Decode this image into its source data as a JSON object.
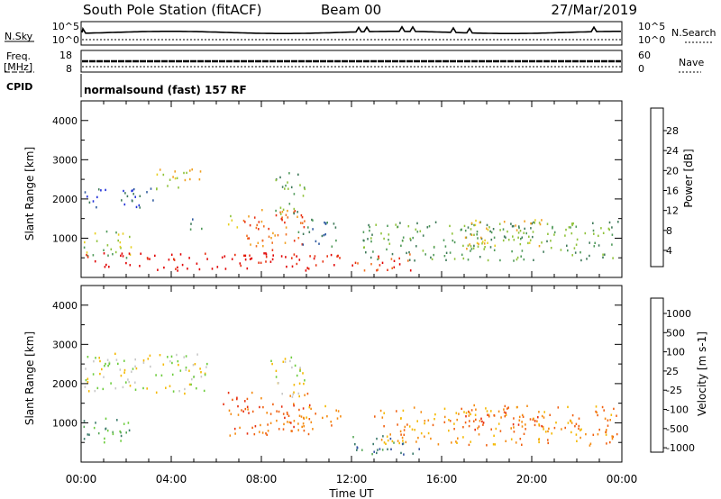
{
  "header": {
    "station": "South Pole Station (fitACF)",
    "beam": "Beam 00",
    "date": "27/Mar/2019"
  },
  "top_panels": {
    "nsky_label": "N.Sky",
    "nsky_ticks": [
      "10^5",
      "10^0"
    ],
    "nsearch_label": "N.Search",
    "nsearch_ticks": [
      "10^5",
      "10^0"
    ],
    "freq_label_line1": "Freq.",
    "freq_label_line2": "[MHz]",
    "freq_ticks": [
      "18",
      "8"
    ],
    "nave_label": "Nave",
    "nave_ticks": [
      "60",
      "0"
    ],
    "cpid_label": "CPID",
    "cpid_value": "normalsound (fast) 157 RF"
  },
  "colors": {
    "power": [
      "#1f2fd8",
      "#2f5aa0",
      "#3f7a5a",
      "#4f9a5a",
      "#8fc23a",
      "#e8d020",
      "#f0a020",
      "#f07020",
      "#e83010",
      "#e00000"
    ],
    "velocity": [
      "#2030c0",
      "#3050a0",
      "#3a7a6a",
      "#58a858",
      "#6ccc3c",
      "#c8c8c8",
      "#f4b800",
      "#f48a10",
      "#f06010",
      "#e83010",
      "#e00000"
    ]
  },
  "chart_data": [
    {
      "type": "heatmap",
      "panel": "power",
      "ylabel": "Slant Range [km]",
      "yticks": [
        "4000",
        "3000",
        "2000",
        "1000"
      ],
      "ylim": [
        0,
        4500
      ],
      "xlim": [
        "00:00",
        "24:00"
      ],
      "colorbar_label": "Power [dB]",
      "colorbar_ticks": [
        "28",
        "24",
        "20",
        "16",
        "12",
        "8",
        "4"
      ],
      "regions": [
        {
          "t0": 0.1,
          "t1": 2.2,
          "r0": 500,
          "r1": 1200,
          "level": 4
        },
        {
          "t0": 0.1,
          "t1": 3.2,
          "r0": 1750,
          "r1": 2300,
          "level": 1
        },
        {
          "t0": 3.2,
          "t1": 5.4,
          "r0": 2250,
          "r1": 2800,
          "level": 5
        },
        {
          "t0": 4.8,
          "t1": 5.4,
          "r0": 1250,
          "r1": 1650,
          "level": 2
        },
        {
          "t0": 6.5,
          "t1": 7.0,
          "r0": 1300,
          "r1": 1750,
          "level": 4
        },
        {
          "t0": 7.1,
          "t1": 10.2,
          "r0": 700,
          "r1": 1750,
          "level": 7
        },
        {
          "t0": 8.6,
          "t1": 9.9,
          "r0": 1600,
          "r1": 2700,
          "level": 3
        },
        {
          "t0": 9.6,
          "t1": 11.4,
          "r0": 800,
          "r1": 1500,
          "level": 2
        },
        {
          "t0": 12.0,
          "t1": 14.8,
          "r0": 200,
          "r1": 650,
          "level": 8
        },
        {
          "t0": 12.5,
          "t1": 23.8,
          "r0": 450,
          "r1": 1450,
          "level": 3
        },
        {
          "t0": 16.8,
          "t1": 20.5,
          "r0": 750,
          "r1": 1500,
          "level": 5
        },
        {
          "t0": 0.1,
          "t1": 11.5,
          "r0": 200,
          "r1": 650,
          "level": 9
        }
      ]
    },
    {
      "type": "heatmap",
      "panel": "velocity",
      "ylabel": "Slant Range [km]",
      "yticks": [
        "4000",
        "3000",
        "2000",
        "1000"
      ],
      "ylim": [
        0,
        4500
      ],
      "xlim": [
        "00:00",
        "24:00"
      ],
      "xticks": [
        "00:00",
        "04:00",
        "08:00",
        "12:00",
        "16:00",
        "20:00",
        "00:00"
      ],
      "xlabel": "Time UT",
      "colorbar_label": "Velocity [m s-1]",
      "colorbar_ticks": [
        "1000",
        "500",
        "100",
        "25",
        "-25",
        "-100",
        "-500",
        "-1000"
      ],
      "regions": [
        {
          "t0": 0.1,
          "t1": 2.2,
          "r0": 500,
          "r1": 1200,
          "level": 3
        },
        {
          "t0": 0.1,
          "t1": 5.6,
          "r0": 1750,
          "r1": 2800,
          "level": 5
        },
        {
          "t0": 6.2,
          "t1": 10.2,
          "r0": 700,
          "r1": 1800,
          "level": 8
        },
        {
          "t0": 8.4,
          "t1": 9.9,
          "r0": 1600,
          "r1": 2700,
          "level": 5
        },
        {
          "t0": 9.6,
          "t1": 11.5,
          "r0": 800,
          "r1": 1500,
          "level": 7
        },
        {
          "t0": 12.0,
          "t1": 15.0,
          "r0": 200,
          "r1": 700,
          "level": 2
        },
        {
          "t0": 13.0,
          "t1": 23.8,
          "r0": 450,
          "r1": 1450,
          "level": 7
        },
        {
          "t0": 17.0,
          "t1": 20.5,
          "r0": 800,
          "r1": 1500,
          "level": 8
        }
      ]
    }
  ]
}
